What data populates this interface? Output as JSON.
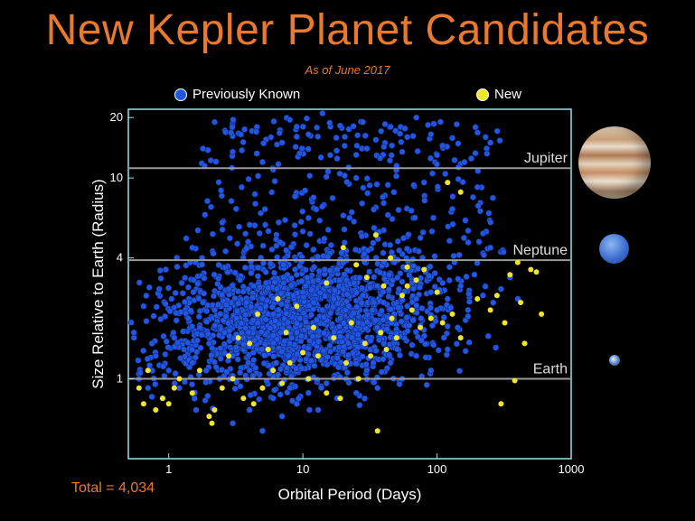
{
  "title": "New Kepler Planet Candidates",
  "subtitle": "As of June 2017",
  "total_label": "Total = 4,034",
  "legend": [
    {
      "label": "Previously Known",
      "color": "#2255e0"
    },
    {
      "label": "New",
      "color": "#f0e62a"
    }
  ],
  "colors": {
    "title": "#e8792f",
    "axis": "#a0e0e8",
    "known": "#2255e0",
    "new": "#f0e62a",
    "refline": "#9a9a9a"
  },
  "chart_data": {
    "type": "scatter",
    "title": "New Kepler Planet Candidates",
    "subtitle": "As of June 2017",
    "xlabel": "Orbital Period (Days)",
    "ylabel": "Size Relative to Earth (Radius)",
    "xscale": "log",
    "yscale": "log",
    "xlim": [
      0.5,
      1000
    ],
    "ylim": [
      0.4,
      22
    ],
    "xticks": [
      {
        "value": 1,
        "label": "1"
      },
      {
        "value": 10,
        "label": "10"
      },
      {
        "value": 100,
        "label": "100"
      },
      {
        "value": 1000,
        "label": "1000"
      }
    ],
    "yticks": [
      {
        "value": 1,
        "label": "1"
      },
      {
        "value": 4,
        "label": "4"
      },
      {
        "value": 10,
        "label": "10"
      },
      {
        "value": 20,
        "label": "20"
      }
    ],
    "reference_lines": [
      {
        "label": "Jupiter",
        "radius": 11.2
      },
      {
        "label": "Neptune",
        "radius": 3.9
      },
      {
        "label": "Earth",
        "radius": 1
      }
    ],
    "series": [
      {
        "name": "Previously Known",
        "color": "#2255e0",
        "count_note": "dense cloud of ~4,000 points centered near 10 days, 2 Earth radii",
        "points": [
          [
            0.6,
            1.0
          ],
          [
            0.7,
            0.9
          ],
          [
            0.8,
            1.3
          ],
          [
            0.9,
            0.8
          ],
          [
            1.0,
            1.1
          ],
          [
            1.1,
            1.6
          ],
          [
            1.2,
            0.9
          ],
          [
            1.3,
            1.4
          ],
          [
            1.4,
            2.0
          ],
          [
            1.5,
            1.2
          ],
          [
            1.6,
            0.7
          ],
          [
            1.7,
            1.8
          ],
          [
            1.8,
            2.4
          ],
          [
            1.9,
            1.1
          ],
          [
            2.0,
            1.5
          ],
          [
            2.2,
            2.2
          ],
          [
            2.4,
            1.0
          ],
          [
            2.6,
            1.7
          ],
          [
            2.8,
            2.8
          ],
          [
            3.0,
            1.3
          ],
          [
            3.2,
            2.0
          ],
          [
            3.4,
            3.1
          ],
          [
            3.6,
            1.6
          ],
          [
            3.8,
            2.4
          ],
          [
            4.0,
            1.1
          ],
          [
            4.3,
            2.9
          ],
          [
            4.6,
            1.9
          ],
          [
            5.0,
            2.5
          ],
          [
            5.3,
            3.4
          ],
          [
            5.6,
            1.4
          ],
          [
            6.0,
            2.1
          ],
          [
            6.4,
            2.8
          ],
          [
            6.8,
            1.7
          ],
          [
            7.2,
            3.0
          ],
          [
            7.6,
            2.3
          ],
          [
            8.0,
            1.5
          ],
          [
            8.5,
            2.6
          ],
          [
            9.0,
            3.3
          ],
          [
            9.5,
            2.0
          ],
          [
            10,
            2.7
          ],
          [
            11,
            1.8
          ],
          [
            12,
            2.4
          ],
          [
            13,
            3.1
          ],
          [
            14,
            2.2
          ],
          [
            15,
            2.9
          ],
          [
            16,
            1.6
          ],
          [
            17,
            2.5
          ],
          [
            18,
            3.5
          ],
          [
            19,
            2.0
          ],
          [
            20,
            2.8
          ],
          [
            22,
            2.3
          ],
          [
            24,
            3.0
          ],
          [
            26,
            1.9
          ],
          [
            28,
            2.6
          ],
          [
            30,
            3.2
          ],
          [
            33,
            2.2
          ],
          [
            36,
            2.9
          ],
          [
            40,
            2.4
          ],
          [
            44,
            3.3
          ],
          [
            48,
            2.1
          ],
          [
            52,
            2.8
          ],
          [
            56,
            3.6
          ],
          [
            60,
            2.3
          ],
          [
            65,
            3.0
          ],
          [
            70,
            2.5
          ],
          [
            76,
            2.0
          ],
          [
            82,
            3.4
          ],
          [
            90,
            2.7
          ],
          [
            100,
            2.2
          ],
          [
            110,
            3.0
          ],
          [
            120,
            2.5
          ],
          [
            135,
            3.8
          ],
          [
            150,
            2.9
          ],
          [
            170,
            2.2
          ],
          [
            190,
            3.3
          ],
          [
            220,
            2.6
          ],
          [
            250,
            4.5
          ],
          [
            300,
            2.8
          ],
          [
            350,
            3.2
          ],
          [
            400,
            2.5
          ],
          [
            1.5,
            4.5
          ],
          [
            2.5,
            6.0
          ],
          [
            3.5,
            9.0
          ],
          [
            5,
            12.0
          ],
          [
            7,
            15.0
          ],
          [
            9,
            18.0
          ],
          [
            12,
            8.0
          ],
          [
            16,
            13.0
          ],
          [
            20,
            6.5
          ],
          [
            25,
            10.0
          ],
          [
            30,
            14.0
          ],
          [
            40,
            7.5
          ],
          [
            50,
            11.5
          ],
          [
            60,
            16.0
          ],
          [
            80,
            9.5
          ],
          [
            100,
            13.0
          ],
          [
            130,
            7.0
          ],
          [
            160,
            12.0
          ],
          [
            200,
            9.0
          ],
          [
            250,
            15.0
          ],
          [
            1.8,
            14.0
          ],
          [
            2.2,
            19.0
          ],
          [
            3.0,
            13.5
          ],
          [
            4.5,
            17.0
          ],
          [
            6.0,
            11.0
          ],
          [
            8,
            19.5
          ],
          [
            11,
            16.5
          ],
          [
            14,
            21.0
          ],
          [
            18,
            12.5
          ],
          [
            22,
            17.5
          ],
          [
            28,
            19.0
          ],
          [
            35,
            15.5
          ],
          [
            45,
            18.0
          ],
          [
            55,
            13.5
          ],
          [
            70,
            20.0
          ],
          [
            90,
            16.5
          ],
          [
            110,
            14.5
          ],
          [
            140,
            18.5
          ],
          [
            180,
            12.5
          ],
          [
            230,
            16.0
          ],
          [
            3,
            0.6
          ],
          [
            4,
            0.7
          ],
          [
            5,
            0.55
          ],
          [
            6,
            0.8
          ],
          [
            7,
            0.65
          ],
          [
            8,
            0.9
          ],
          [
            9,
            0.75
          ],
          [
            11,
            0.85
          ],
          [
            13,
            0.7
          ],
          [
            15,
            0.95
          ],
          [
            18,
            0.8
          ],
          [
            21,
            1.0
          ],
          [
            25,
            0.85
          ],
          [
            30,
            1.1
          ],
          [
            36,
            0.9
          ],
          [
            45,
            1.2
          ],
          [
            55,
            1.0
          ],
          [
            70,
            1.3
          ],
          [
            90,
            1.1
          ],
          [
            120,
            1.4
          ],
          [
            0.55,
            1.7
          ],
          [
            0.65,
            2.3
          ],
          [
            0.75,
            1.5
          ],
          [
            0.85,
            2.8
          ],
          [
            0.95,
            3.5
          ],
          [
            1.05,
            2.5
          ],
          [
            1.15,
            4.0
          ],
          [
            1.25,
            3.0
          ],
          [
            1.35,
            5.0
          ],
          [
            1.45,
            3.8
          ]
        ]
      },
      {
        "name": "New",
        "color": "#f0e62a",
        "points": [
          [
            0.6,
            0.9
          ],
          [
            0.65,
            0.75
          ],
          [
            0.7,
            1.1
          ],
          [
            0.8,
            0.7
          ],
          [
            0.9,
            0.8
          ],
          [
            1.0,
            0.75
          ],
          [
            1.1,
            0.9
          ],
          [
            1.2,
            1.0
          ],
          [
            1.5,
            0.85
          ],
          [
            1.7,
            1.1
          ],
          [
            2.0,
            0.65
          ],
          [
            2.1,
            0.6
          ],
          [
            2.2,
            0.7
          ],
          [
            2.5,
            0.9
          ],
          [
            2.8,
            1.3
          ],
          [
            3.0,
            1.0
          ],
          [
            3.3,
            1.6
          ],
          [
            3.6,
            0.8
          ],
          [
            4.0,
            1.5
          ],
          [
            4.3,
            0.75
          ],
          [
            4.6,
            2.1
          ],
          [
            5.0,
            0.9
          ],
          [
            5.5,
            1.4
          ],
          [
            6.0,
            1.1
          ],
          [
            6.5,
            2.5
          ],
          [
            7.0,
            0.95
          ],
          [
            7.5,
            1.7
          ],
          [
            8.0,
            1.2
          ],
          [
            9.0,
            2.3
          ],
          [
            10,
            1.35
          ],
          [
            11,
            1.0
          ],
          [
            12,
            1.8
          ],
          [
            13,
            1.3
          ],
          [
            15,
            0.85
          ],
          [
            17,
            1.6
          ],
          [
            19,
            0.8
          ],
          [
            21,
            1.2
          ],
          [
            23,
            1.9
          ],
          [
            26,
            1.0
          ],
          [
            29,
            1.5
          ],
          [
            32,
            1.3
          ],
          [
            36,
            0.55
          ],
          [
            38,
            1.7
          ],
          [
            42,
            1.4
          ],
          [
            46,
            2.0
          ],
          [
            50,
            1.6
          ],
          [
            55,
            2.6
          ],
          [
            60,
            2.9
          ],
          [
            65,
            2.2
          ],
          [
            70,
            3.1
          ],
          [
            75,
            1.8
          ],
          [
            80,
            3.5
          ],
          [
            90,
            2.0
          ],
          [
            100,
            2.7
          ],
          [
            110,
            1.9
          ],
          [
            130,
            2.1
          ],
          [
            150,
            1.6
          ],
          [
            200,
            2.5
          ],
          [
            250,
            2.2
          ],
          [
            280,
            2.6
          ],
          [
            300,
            0.75
          ],
          [
            320,
            1.9
          ],
          [
            350,
            3.3
          ],
          [
            380,
            0.98
          ],
          [
            400,
            3.8
          ],
          [
            420,
            2.4
          ],
          [
            450,
            1.5
          ],
          [
            500,
            3.5
          ],
          [
            550,
            3.4
          ],
          [
            600,
            2.1
          ],
          [
            120,
            9.5
          ],
          [
            150,
            8.5
          ],
          [
            45,
            4.0
          ],
          [
            35,
            5.2
          ],
          [
            20,
            4.5
          ],
          [
            25,
            3.7
          ],
          [
            60,
            3.6
          ],
          [
            30,
            3.2
          ],
          [
            40,
            2.9
          ],
          [
            15,
            3.0
          ]
        ]
      }
    ]
  }
}
